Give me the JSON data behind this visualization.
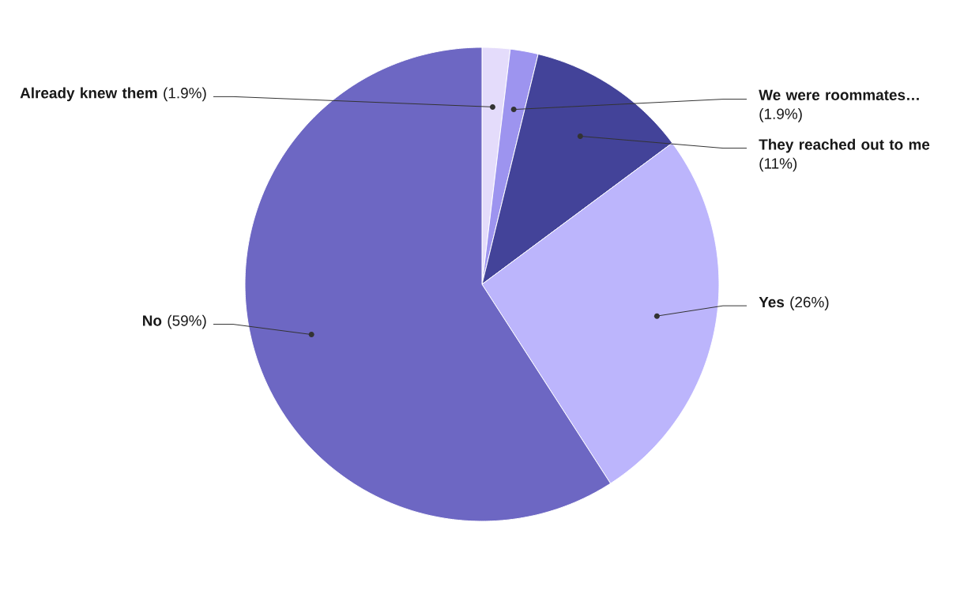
{
  "chart_data": {
    "type": "pie",
    "categories": [
      "Already knew them",
      "We were roommates…",
      "They reached out to me",
      "Yes",
      "No"
    ],
    "values": [
      1.9,
      1.9,
      11,
      26,
      59
    ],
    "value_labels": [
      "(1.9%)",
      "(1.9%)",
      "(11%)",
      "(26%)",
      "(59%)"
    ],
    "colors": [
      "#e4dcfb",
      "#9d94ef",
      "#434399",
      "#bcb5fc",
      "#6d67c3"
    ]
  }
}
